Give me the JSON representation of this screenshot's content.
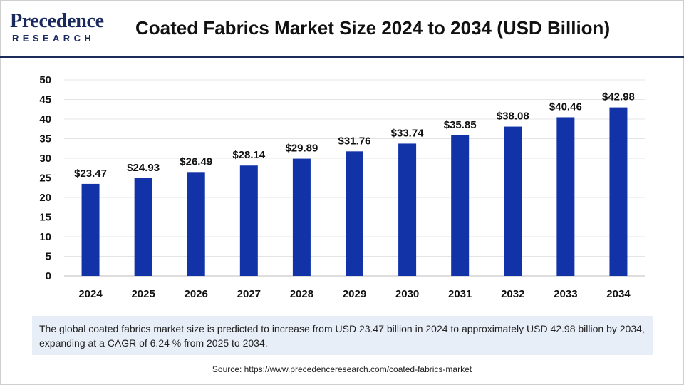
{
  "logo": {
    "line1": "Precedence",
    "line2": "RESEARCH"
  },
  "title": "Coated Fabrics Market Size 2024 to 2034 (USD Billion)",
  "summary": "The global coated fabrics market size is predicted to increase from USD 23.47 billion in 2024 to approximately USD 42.98 billion by 2034, expanding at a CAGR of 6.24 % from 2025 to 2034.",
  "source": "Source: https://www.precedenceresearch.com/coated-fabrics-market",
  "colors": {
    "bar": "#1233a8",
    "rule": "#1c2b5a",
    "summary_bg": "#e8eef8",
    "logo": "#1a2a5e"
  },
  "chart_data": {
    "type": "bar",
    "categories": [
      "2024",
      "2025",
      "2026",
      "2027",
      "2028",
      "2029",
      "2030",
      "2031",
      "2032",
      "2033",
      "2034"
    ],
    "values": [
      23.47,
      24.93,
      26.49,
      28.14,
      29.89,
      31.76,
      33.74,
      35.85,
      38.08,
      40.46,
      42.98
    ],
    "data_labels": [
      "$23.47",
      "$24.93",
      "$26.49",
      "$28.14",
      "$29.89",
      "$31.76",
      "$33.74",
      "$35.85",
      "$38.08",
      "$40.46",
      "$42.98"
    ],
    "yticks": [
      0,
      5,
      10,
      15,
      20,
      25,
      30,
      35,
      40,
      45,
      50
    ],
    "ylim": [
      0,
      50
    ],
    "title": "",
    "xlabel": "",
    "ylabel": "",
    "grid": true,
    "legend": "none"
  }
}
